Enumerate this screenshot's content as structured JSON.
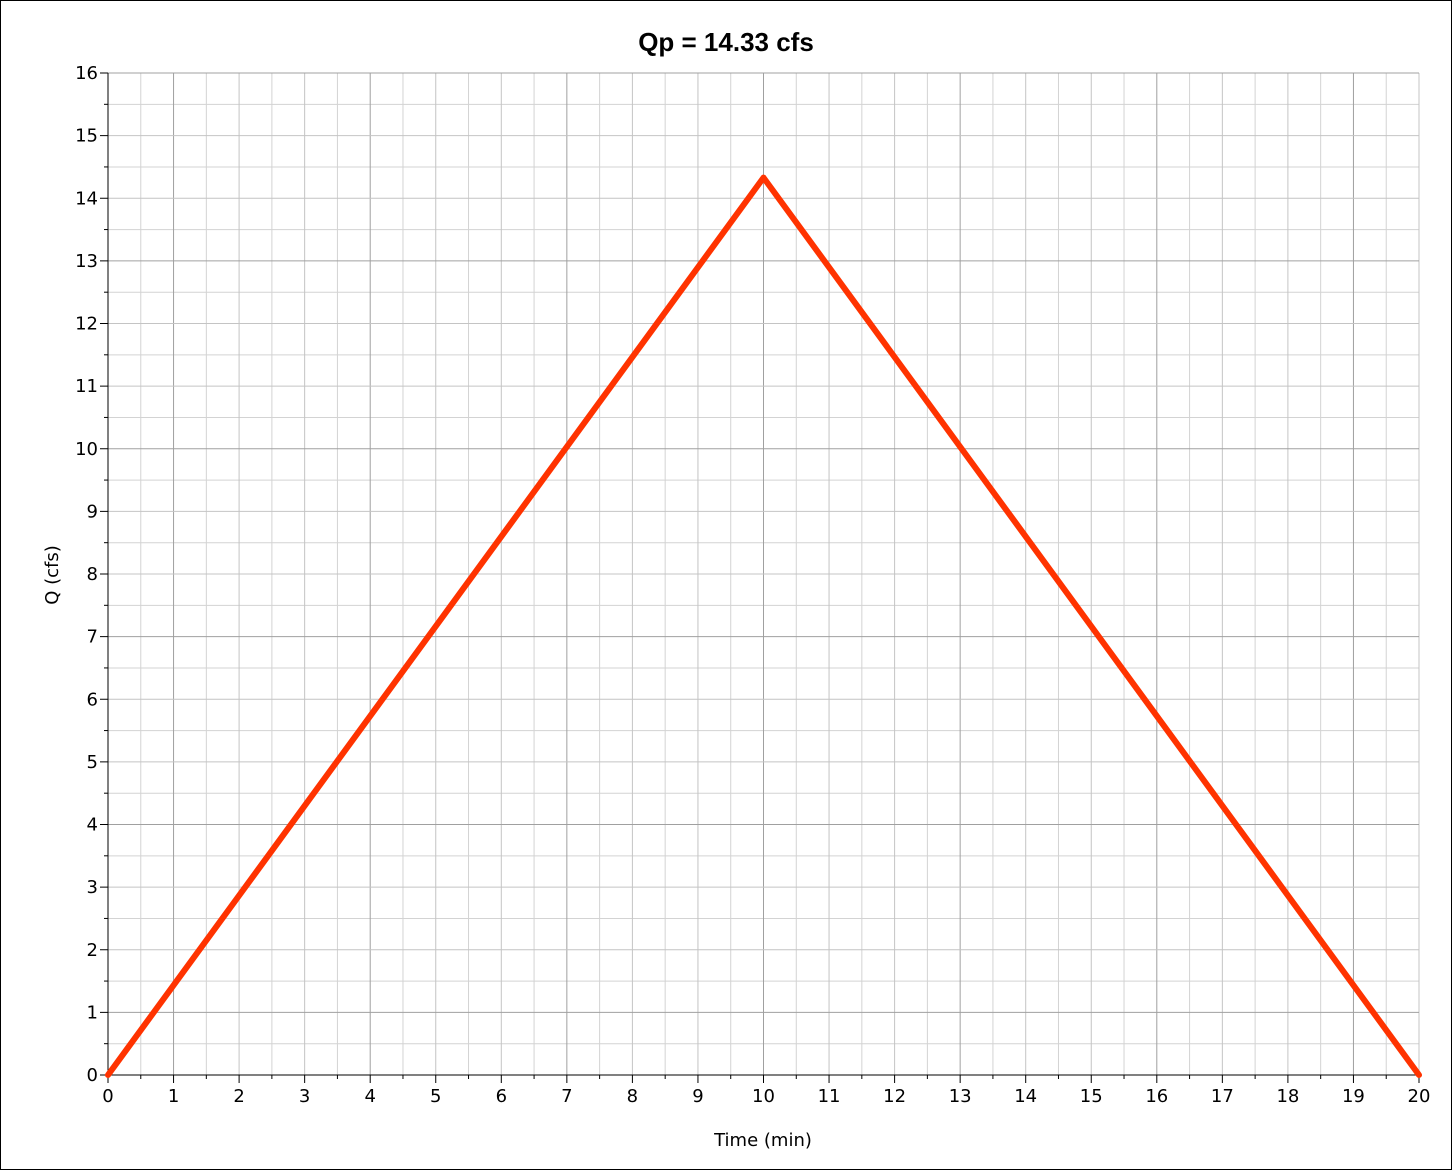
{
  "chart_data": {
    "type": "line",
    "title": "Qp = 14.33 cfs",
    "xlabel": "Time (min)",
    "ylabel": "Q (cfs)",
    "xlim": [
      0,
      20
    ],
    "ylim": [
      0,
      16
    ],
    "x_ticks": [
      "0",
      "1",
      "2",
      "3",
      "4",
      "5",
      "6",
      "7",
      "8",
      "9",
      "10",
      "11",
      "12",
      "13",
      "14",
      "15",
      "16",
      "17",
      "18",
      "19",
      "20"
    ],
    "y_ticks": [
      "0",
      "1",
      "2",
      "3",
      "4",
      "5",
      "6",
      "7",
      "8",
      "9",
      "10",
      "11",
      "12",
      "13",
      "14",
      "15",
      "16"
    ],
    "grid": true,
    "legend": "none",
    "series": [
      {
        "color": "#ff3300",
        "x": [
          0,
          10,
          20
        ],
        "y": [
          0,
          14.33,
          0
        ]
      }
    ]
  }
}
